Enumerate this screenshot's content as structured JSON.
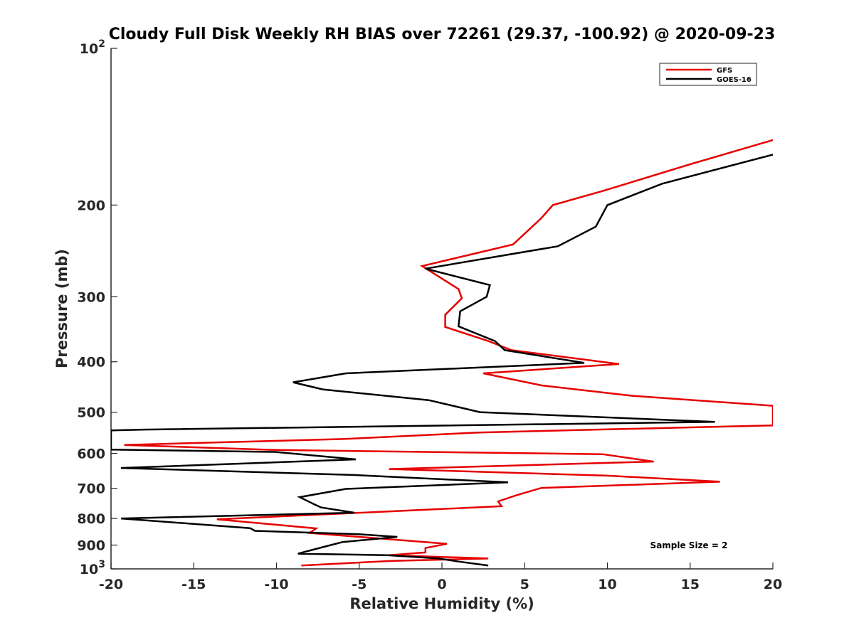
{
  "chart_data": {
    "type": "line",
    "title": "Cloudy Full Disk Weekly RH BIAS over 72261 (29.37, -100.92) @ 2020-09-23",
    "xlabel": "Relative Humidity (%)",
    "ylabel": "Pressure (mb)",
    "xlim": [
      -20,
      20
    ],
    "ylim": [
      100,
      1000
    ],
    "yscale": "log",
    "y_reversed": true,
    "x_ticks": [
      -20,
      -15,
      -10,
      -5,
      0,
      5,
      10,
      15,
      20
    ],
    "x_tick_labels": [
      "-20",
      "-15",
      "-10",
      "-5",
      "0",
      "5",
      "10",
      "15",
      "20"
    ],
    "y_ticks": [
      100,
      200,
      300,
      400,
      500,
      600,
      700,
      800,
      900,
      1000
    ],
    "y_tick_labels": [
      {
        "base": "10",
        "exp": "2"
      },
      {
        "base": "200",
        "exp": ""
      },
      {
        "base": "300",
        "exp": ""
      },
      {
        "base": "400",
        "exp": ""
      },
      {
        "base": "500",
        "exp": ""
      },
      {
        "base": "600",
        "exp": ""
      },
      {
        "base": "700",
        "exp": ""
      },
      {
        "base": "800",
        "exp": ""
      },
      {
        "base": "900",
        "exp": ""
      },
      {
        "base": "10",
        "exp": "3"
      }
    ],
    "grid": false,
    "legend_position": "top-right",
    "annotation": "Sample Size = 2",
    "series": [
      {
        "name": "GFS",
        "color": "#e60000",
        "points": [
          [
            20.0,
            150
          ],
          [
            15.0,
            167
          ],
          [
            9.7,
            188
          ],
          [
            6.7,
            200
          ],
          [
            6.0,
            212
          ],
          [
            4.3,
            238
          ],
          [
            -1.2,
            262
          ],
          [
            1.0,
            290
          ],
          [
            1.2,
            302
          ],
          [
            0.2,
            325
          ],
          [
            0.2,
            343
          ],
          [
            2.8,
            365
          ],
          [
            4.2,
            380
          ],
          [
            10.7,
            404
          ],
          [
            2.5,
            421
          ],
          [
            6.0,
            444
          ],
          [
            11.5,
            465
          ],
          [
            20.0,
            486
          ],
          [
            20.0,
            530
          ],
          [
            2.2,
            547
          ],
          [
            -6.0,
            563
          ],
          [
            -19.2,
            578
          ],
          [
            -10.0,
            591
          ],
          [
            9.7,
            602
          ],
          [
            12.8,
            622
          ],
          [
            -3.2,
            643
          ],
          [
            10.0,
            662
          ],
          [
            16.8,
            680
          ],
          [
            6.0,
            699
          ],
          [
            4.5,
            722
          ],
          [
            3.4,
            742
          ],
          [
            3.6,
            758
          ],
          [
            -13.6,
            803
          ],
          [
            -7.6,
            836
          ],
          [
            -8.0,
            853
          ],
          [
            -5.0,
            868
          ],
          [
            -3.0,
            878
          ],
          [
            0.3,
            895
          ],
          [
            -1.0,
            912
          ],
          [
            -1.0,
            930
          ],
          [
            -3.2,
            941
          ],
          [
            2.8,
            955
          ],
          [
            -3.0,
            965
          ],
          [
            -8.5,
            985
          ]
        ]
      },
      {
        "name": "GOES-16",
        "color": "#000000",
        "points": [
          [
            20.0,
            160
          ],
          [
            13.3,
            182
          ],
          [
            10.0,
            200
          ],
          [
            9.3,
            220
          ],
          [
            7.0,
            240
          ],
          [
            -1.0,
            265
          ],
          [
            2.9,
            285
          ],
          [
            2.7,
            300
          ],
          [
            1.1,
            320
          ],
          [
            1.0,
            342
          ],
          [
            3.2,
            365
          ],
          [
            3.8,
            380
          ],
          [
            8.6,
            402
          ],
          [
            -5.8,
            421
          ],
          [
            -9.0,
            438
          ],
          [
            -7.2,
            452
          ],
          [
            -0.8,
            474
          ],
          [
            2.3,
            500
          ],
          [
            16.5,
            522
          ],
          [
            -18.0,
            540
          ],
          [
            -20.0,
            542
          ],
          [
            -20.0,
            590
          ],
          [
            -10.1,
            596
          ],
          [
            -5.2,
            616
          ],
          [
            -19.4,
            640
          ],
          [
            -5.4,
            660
          ],
          [
            4.0,
            682
          ],
          [
            -5.8,
            702
          ],
          [
            -8.6,
            728
          ],
          [
            -7.7,
            752
          ],
          [
            -7.3,
            762
          ],
          [
            -5.3,
            780
          ],
          [
            -19.4,
            800
          ],
          [
            -11.6,
            835
          ],
          [
            -11.3,
            845
          ],
          [
            -5.0,
            858
          ],
          [
            -2.7,
            868
          ],
          [
            -6.0,
            888
          ],
          [
            -7.3,
            910
          ],
          [
            -8.7,
            935
          ],
          [
            -3.3,
            941
          ],
          [
            -0.2,
            955
          ],
          [
            1.0,
            968
          ],
          [
            2.8,
            985
          ]
        ]
      }
    ]
  }
}
